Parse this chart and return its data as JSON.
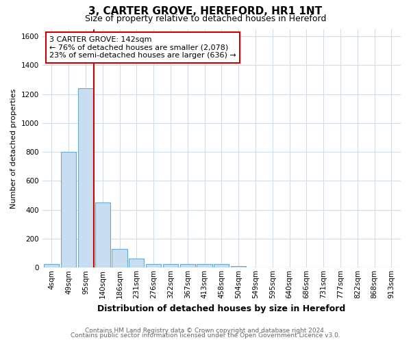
{
  "title": "3, CARTER GROVE, HEREFORD, HR1 1NT",
  "subtitle": "Size of property relative to detached houses in Hereford",
  "xlabel": "Distribution of detached houses by size in Hereford",
  "ylabel": "Number of detached properties",
  "bin_labels": [
    "4sqm",
    "49sqm",
    "95sqm",
    "140sqm",
    "186sqm",
    "231sqm",
    "276sqm",
    "322sqm",
    "367sqm",
    "413sqm",
    "458sqm",
    "504sqm",
    "549sqm",
    "595sqm",
    "640sqm",
    "686sqm",
    "731sqm",
    "777sqm",
    "822sqm",
    "868sqm",
    "913sqm"
  ],
  "bar_heights": [
    25,
    800,
    1240,
    450,
    130,
    65,
    25,
    25,
    25,
    25,
    25,
    10,
    0,
    0,
    0,
    0,
    0,
    0,
    0,
    0,
    0
  ],
  "bar_color": "#c8ddef",
  "bar_edge_color": "#6aaad4",
  "vline_color": "#cc0000",
  "vline_x": 2.5,
  "annotation_line1": "3 CARTER GROVE: 142sqm",
  "annotation_line2": "← 76% of detached houses are smaller (2,078)",
  "annotation_line3": "23% of semi-detached houses are larger (636) →",
  "annotation_box_facecolor": "#ffffff",
  "annotation_box_edgecolor": "#cc0000",
  "ylim": [
    0,
    1650
  ],
  "yticks": [
    0,
    200,
    400,
    600,
    800,
    1000,
    1200,
    1400,
    1600
  ],
  "footer1": "Contains HM Land Registry data © Crown copyright and database right 2024.",
  "footer2": "Contains public sector information licensed under the Open Government Licence v3.0.",
  "bg_color": "#ffffff",
  "grid_color": "#d0dde8",
  "title_fontsize": 11,
  "subtitle_fontsize": 9,
  "ylabel_fontsize": 8,
  "xlabel_fontsize": 9,
  "tick_fontsize": 7.5,
  "footer_fontsize": 6.5,
  "annotation_fontsize": 8
}
